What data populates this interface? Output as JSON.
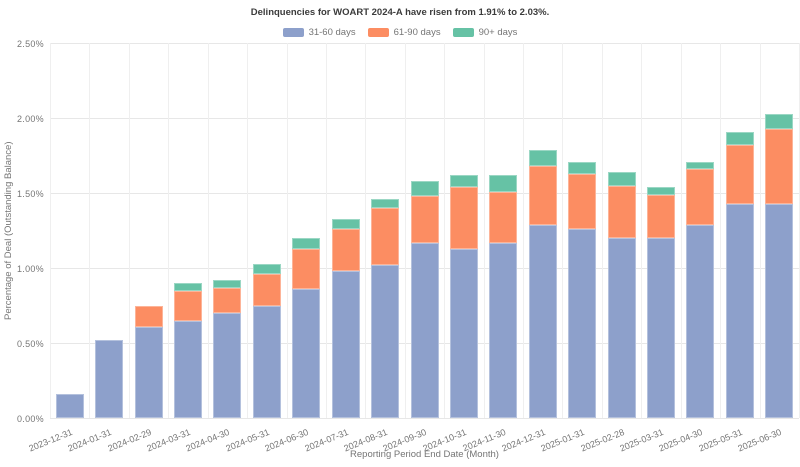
{
  "chart_data": {
    "type": "bar",
    "stacked": true,
    "title": "Delinquencies for WOART 2024-A have risen from 1.91% to 2.03%.",
    "xlabel": "Reporting Period End Date (Month)",
    "ylabel": "Percentage of Deal (Outstanding Balance)",
    "ylim": [
      0,
      2.5
    ],
    "y_tick_labels": [
      "0.00%",
      "0.50%",
      "1.00%",
      "1.50%",
      "2.00%",
      "2.50%"
    ],
    "grid": true,
    "legend_position": "top",
    "background_color": "#ffffff",
    "grid_color": "#e7e7e7",
    "text_color": "#757575",
    "title_color": "#3b3b3b",
    "categories": [
      "2023-12-31",
      "2024-01-31",
      "2024-02-29",
      "2024-03-31",
      "2024-04-30",
      "2024-05-31",
      "2024-06-30",
      "2024-07-31",
      "2024-08-31",
      "2024-09-30",
      "2024-10-31",
      "2024-11-30",
      "2024-12-31",
      "2025-01-31",
      "2025-02-28",
      "2025-03-31",
      "2025-04-30",
      "2025-05-31",
      "2025-06-30"
    ],
    "series": [
      {
        "name": "31-60 days",
        "color": "#8da0cb",
        "values": [
          0.16,
          0.52,
          0.61,
          0.65,
          0.7,
          0.75,
          0.86,
          0.98,
          1.02,
          1.17,
          1.13,
          1.17,
          1.29,
          1.26,
          1.2,
          1.2,
          1.29,
          1.43,
          1.43
        ]
      },
      {
        "name": "61-90 days",
        "color": "#fc8d62",
        "values": [
          0.0,
          0.0,
          0.14,
          0.2,
          0.17,
          0.21,
          0.27,
          0.28,
          0.38,
          0.31,
          0.41,
          0.34,
          0.39,
          0.37,
          0.35,
          0.29,
          0.37,
          0.39,
          0.5
        ]
      },
      {
        "name": "90+ days",
        "color": "#66c2a5",
        "values": [
          0.0,
          0.0,
          0.0,
          0.05,
          0.05,
          0.07,
          0.07,
          0.07,
          0.06,
          0.1,
          0.08,
          0.11,
          0.11,
          0.08,
          0.09,
          0.05,
          0.05,
          0.09,
          0.1
        ]
      }
    ],
    "totals_note": {
      "previous_total": "1.91%",
      "current_total": "2.03%"
    }
  }
}
